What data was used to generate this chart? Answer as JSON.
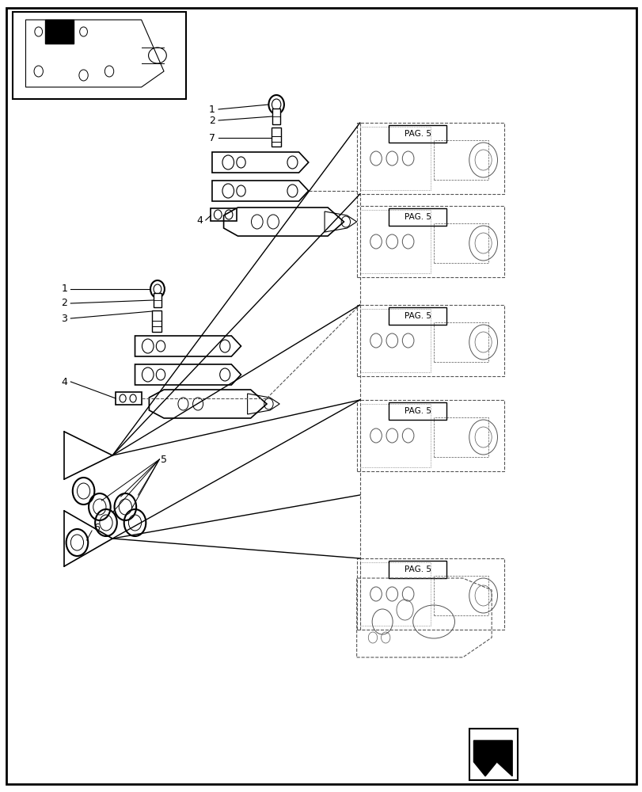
{
  "bg_color": "#ffffff",
  "line_color": "#000000",
  "dashed_color": "#555555",
  "light_gray": "#aaaaaa",
  "title": "",
  "pag5_labels": [
    "PAG. 5",
    "PAG. 5",
    "PAG. 5",
    "PAG. 5",
    "PAG. 5"
  ]
}
